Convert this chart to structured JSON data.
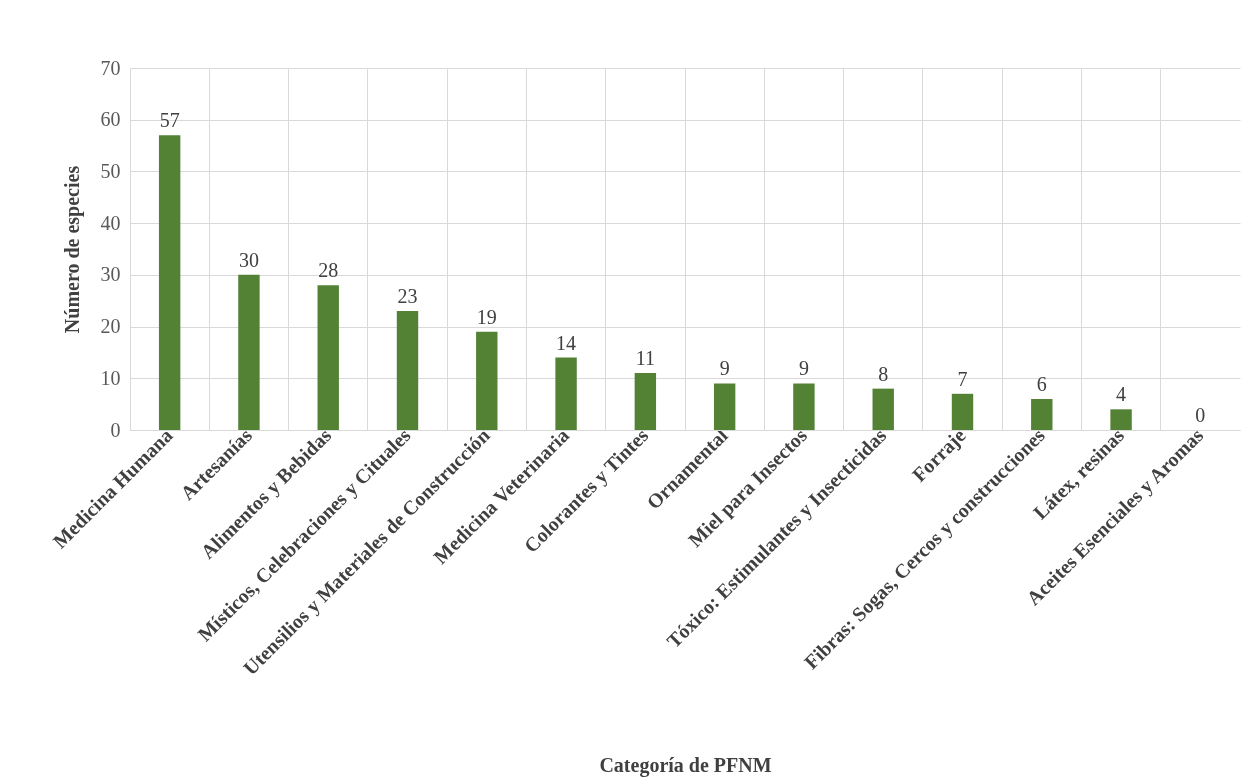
{
  "chart_data": {
    "type": "bar",
    "xlabel": "Categoría de PFNM",
    "ylabel": "Número de especies",
    "categories": [
      "Medicina Humana",
      "Artesanías",
      "Alimentos y Bebidas",
      "Místicos, Celebraciones y Cituales",
      "Utensilios y Materiales de Construcción",
      "Medicina Veterinaria",
      "Colorantes y Tintes",
      "Ornamental",
      "Miel para Insectos",
      "Tóxico: Estimulantes y Insecticidas",
      "Forraje",
      "Fibras: Sogas, Cercos y construcciones",
      "Látex, resinas",
      "Aceites Esenciales y Aromas"
    ],
    "values": [
      57,
      30,
      28,
      23,
      19,
      14,
      11,
      9,
      9,
      8,
      7,
      6,
      4,
      0
    ],
    "color": "#548235",
    "ylim": [
      0,
      70
    ],
    "yticks": [
      0,
      10,
      20,
      30,
      40,
      50,
      60,
      70
    ],
    "grid": true,
    "data_labels": true
  }
}
